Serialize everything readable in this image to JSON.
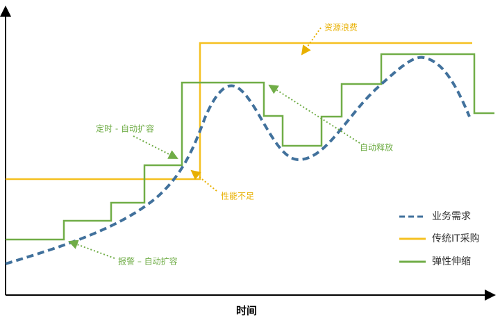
{
  "x_axis_label": "时间",
  "annotations": [
    "资源浪费",
    "定时 - 自动扩容",
    "性能不足",
    "自动释放",
    "报警 – 自动扩容"
  ],
  "legend": [
    "业务需求",
    "传统IT采购",
    "弹性伸缩"
  ]
}
